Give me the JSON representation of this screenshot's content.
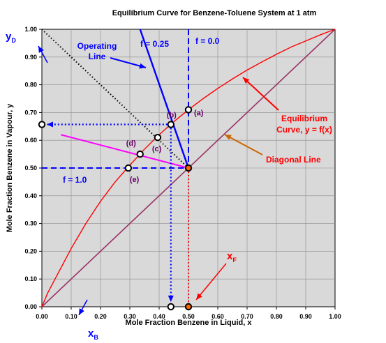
{
  "chart_data": {
    "type": "line",
    "title": "Equilibrium Curve for Benzene-Toluene System at 1 atm",
    "xlabel": "Mole Fraction Benzene in Liquid, x",
    "ylabel": "Mole Fraction Benzene in Vapour, y",
    "xlim": [
      0,
      1
    ],
    "ylim": [
      0,
      1
    ],
    "grid": true,
    "x_ticks": [
      "0.00",
      "0.10",
      "0.20",
      "0.30",
      "0.40",
      "0.50",
      "0.60",
      "0.70",
      "0.80",
      "0.90",
      "1.00"
    ],
    "y_ticks": [
      "0.00",
      "0.10",
      "0.20",
      "0.30",
      "0.40",
      "0.50",
      "0.60",
      "0.70",
      "0.80",
      "0.90",
      "1.00"
    ],
    "colors": {
      "plot_bg": "#d9d9d9",
      "equilibrium": "#ff0000",
      "diagonal": "#993366",
      "operating": "#0000ff",
      "feed_line_k": "#ff00ff",
      "dotted_black": "#000000",
      "annotation_red": "#ff0000",
      "annotation_orange": "#cc6600",
      "annotation_purple": "#660066",
      "point_fill": "#ffffff",
      "point_fill_axis": "#ff6600"
    },
    "series": [
      {
        "id": "equilibrium",
        "x": [
          0,
          0.02,
          0.05,
          0.1,
          0.15,
          0.2,
          0.25,
          0.3,
          0.35,
          0.4,
          0.45,
          0.5,
          0.55,
          0.6,
          0.65,
          0.7,
          0.75,
          0.8,
          0.85,
          0.9,
          0.95,
          1.0
        ],
        "y": [
          0,
          0.05,
          0.11,
          0.21,
          0.3,
          0.38,
          0.45,
          0.51,
          0.568,
          0.62,
          0.667,
          0.71,
          0.75,
          0.787,
          0.821,
          0.853,
          0.882,
          0.91,
          0.936,
          0.958,
          0.98,
          1.0
        ]
      },
      {
        "id": "diagonal",
        "x": [
          0,
          1
        ],
        "y": [
          0,
          1
        ]
      },
      {
        "id": "operating",
        "x": [
          0.335,
          0.5
        ],
        "y": [
          1.0,
          0.5
        ]
      },
      {
        "id": "f0",
        "x": [
          0.5,
          0.5
        ],
        "y": [
          1.0,
          0.5
        ]
      },
      {
        "id": "f1",
        "x": [
          0.0,
          0.5
        ],
        "y": [
          0.5,
          0.5
        ]
      },
      {
        "id": "dotted-k",
        "x": [
          0.0,
          0.5
        ],
        "y": [
          1.0,
          0.5
        ]
      },
      {
        "id": "magenta",
        "x": [
          0.065,
          0.5
        ],
        "y": [
          0.62,
          0.5
        ]
      },
      {
        "id": "yd-guide",
        "x": [
          0.0,
          0.44
        ],
        "y": [
          0.657,
          0.657
        ]
      },
      {
        "id": "xb-guide",
        "x": [
          0.44,
          0.44
        ],
        "y": [
          0.657,
          0.0
        ]
      },
      {
        "id": "xf-guide",
        "x": [
          0.5,
          0.5
        ],
        "y": [
          0.5,
          0.0
        ]
      }
    ],
    "points": [
      {
        "label": "(a)",
        "x": 0.5,
        "y": 0.71
      },
      {
        "label": "(b)",
        "x": 0.44,
        "y": 0.657
      },
      {
        "label": "(c)",
        "x": 0.395,
        "y": 0.61
      },
      {
        "label": "(d)",
        "x": 0.335,
        "y": 0.55
      },
      {
        "label": "(e)",
        "x": 0.295,
        "y": 0.5
      },
      {
        "label": "",
        "x": 0.5,
        "y": 0.5
      },
      {
        "label": "",
        "x": 0.0,
        "y": 0.657
      },
      {
        "label": "",
        "x": 0.44,
        "y": 0.0
      },
      {
        "label": "",
        "x": 0.5,
        "y": 0.0
      }
    ],
    "annotations": {
      "operating_line": [
        "Operating",
        "Line"
      ],
      "f_025": "f = 0.25",
      "f_00": "f = 0.0",
      "f_10": "f = 1.0",
      "equilibrium_curve": [
        "Equilibrium",
        "Curve, y = f(x)"
      ],
      "diagonal_line": "Diagonal Line",
      "y_d": "y",
      "y_d_sub": "D",
      "x_b": "x",
      "x_b_sub": "B",
      "x_f": "x",
      "x_f_sub": "F"
    }
  }
}
